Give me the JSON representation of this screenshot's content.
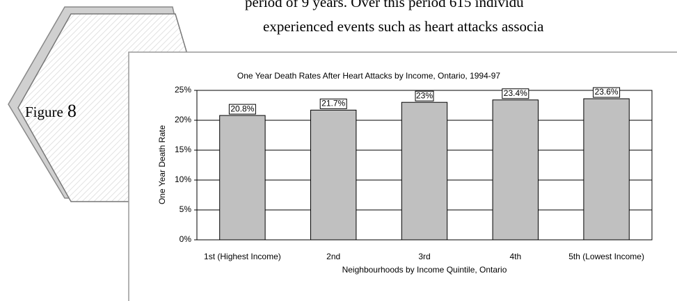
{
  "document": {
    "text_lines": [
      "period of 9 years. Over this period 615 individu",
      "experienced events such as heart attacks associa"
    ],
    "figure_label": "Figure",
    "figure_number": "8"
  },
  "chart_data": {
    "type": "bar",
    "title": "One Year Death Rates After Heart Attacks by Income, Ontario, 1994-97",
    "x_label": "Neighbourhoods by Income Quintile, Ontario",
    "y_label": "One Year Death Rate",
    "categories": [
      "1st (Highest Income)",
      "2nd",
      "3rd",
      "4th",
      "5th (Lowest Income)"
    ],
    "values": [
      20.8,
      21.7,
      23,
      23.4,
      23.6
    ],
    "value_labels": [
      "20.8%",
      "21.7%",
      "23%",
      "23.4%",
      "23.6%"
    ],
    "color": "#c0c0c0",
    "ylim": [
      0,
      25
    ],
    "yticks": [
      {
        "value": 0,
        "label": "0%"
      },
      {
        "value": 5,
        "label": "5%"
      },
      {
        "value": 10,
        "label": "10%"
      },
      {
        "value": 15,
        "label": "15%"
      },
      {
        "value": 20,
        "label": "20%"
      },
      {
        "value": 25,
        "label": "25%"
      }
    ],
    "grid": true
  }
}
